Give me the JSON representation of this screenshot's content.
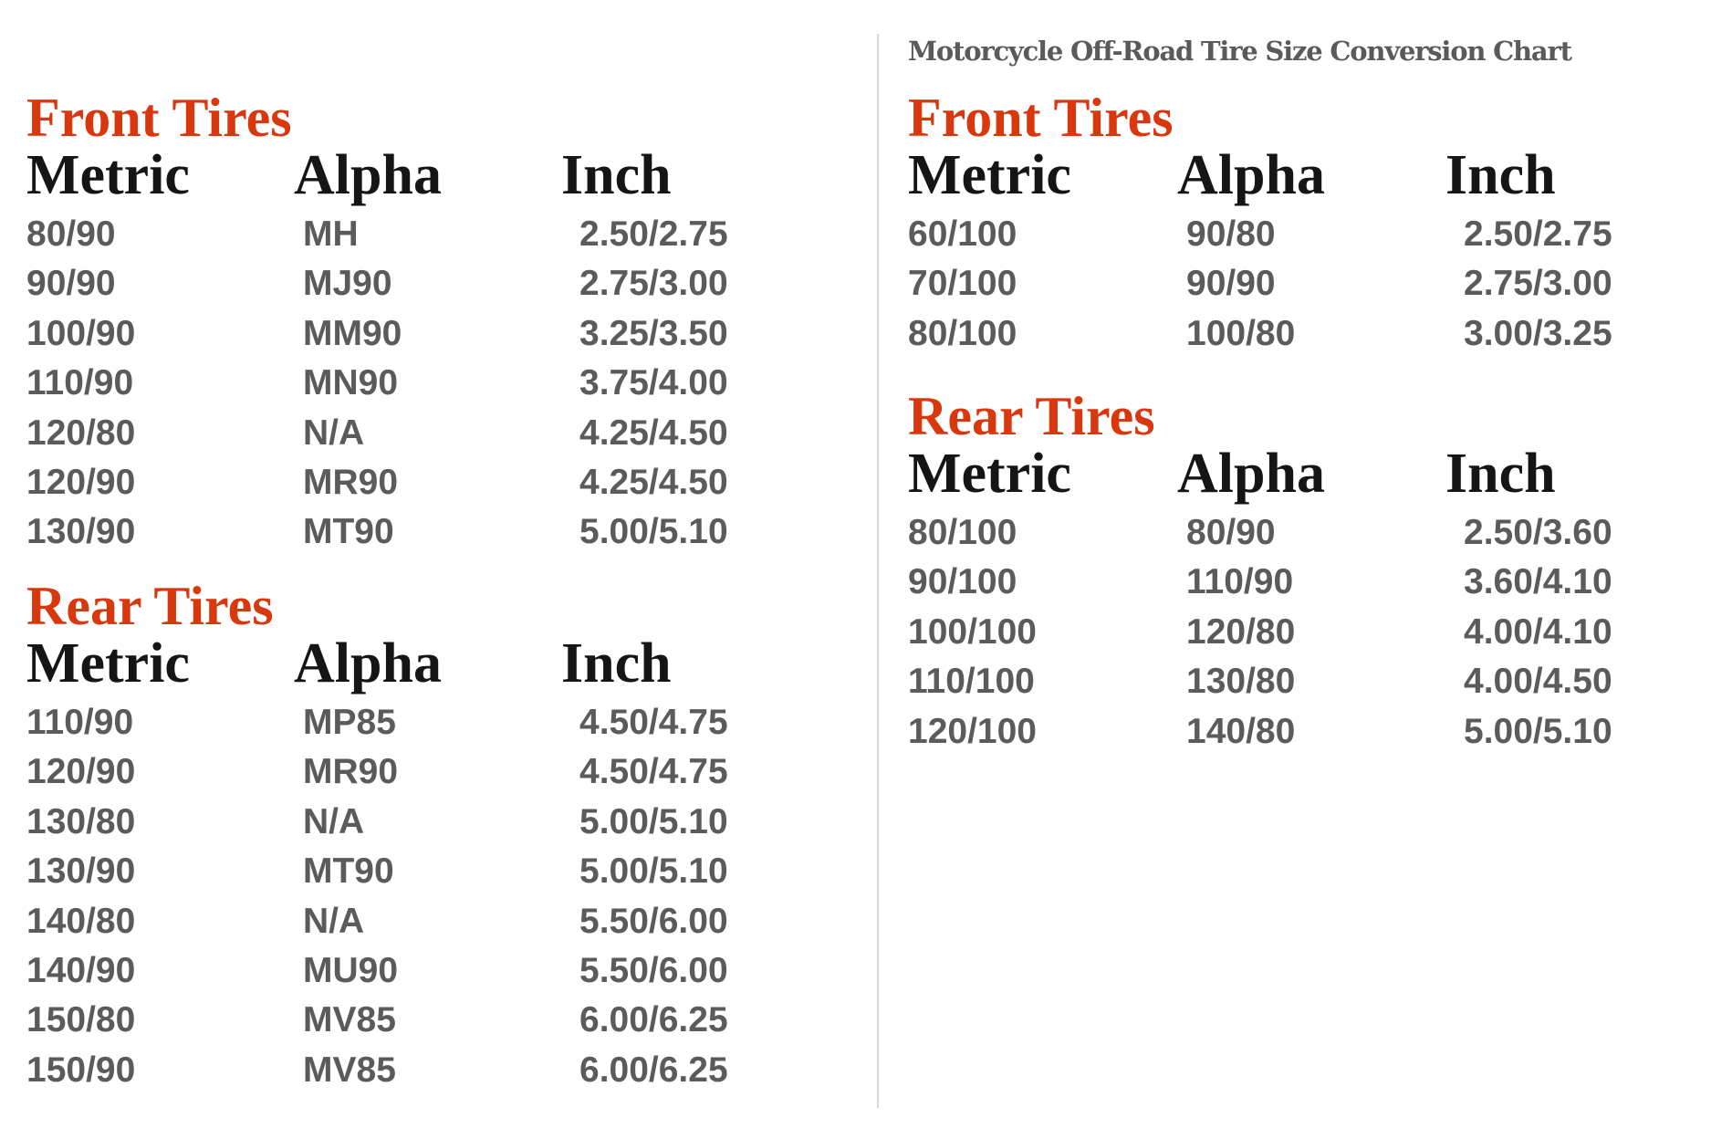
{
  "title": "Motorcycle Off-Road Tire Size Conversion Chart",
  "colors": {
    "heading": "#d9380e",
    "column_header": "#151515",
    "cell_text": "#5b5b5b",
    "divider": "#d8d8d8"
  },
  "left": {
    "front": {
      "heading": "Front Tires",
      "columns": [
        "Metric",
        "Alpha",
        "Inch"
      ],
      "rows": [
        [
          "80/90",
          "MH",
          "2.50/2.75"
        ],
        [
          "90/90",
          "MJ90",
          "2.75/3.00"
        ],
        [
          "100/90",
          "MM90",
          "3.25/3.50"
        ],
        [
          "110/90",
          "MN90",
          "3.75/4.00"
        ],
        [
          "120/80",
          "N/A",
          "4.25/4.50"
        ],
        [
          "120/90",
          "MR90",
          "4.25/4.50"
        ],
        [
          "130/90",
          "MT90",
          "5.00/5.10"
        ]
      ]
    },
    "rear": {
      "heading": "Rear Tires",
      "columns": [
        "Metric",
        "Alpha",
        "Inch"
      ],
      "rows": [
        [
          "110/90",
          "MP85",
          "4.50/4.75"
        ],
        [
          "120/90",
          "MR90",
          "4.50/4.75"
        ],
        [
          "130/80",
          "N/A",
          "5.00/5.10"
        ],
        [
          "130/90",
          "MT90",
          "5.00/5.10"
        ],
        [
          "140/80",
          "N/A",
          "5.50/6.00"
        ],
        [
          "140/90",
          "MU90",
          "5.50/6.00"
        ],
        [
          "150/80",
          "MV85",
          "6.00/6.25"
        ],
        [
          "150/90",
          "MV85",
          "6.00/6.25"
        ]
      ]
    }
  },
  "right": {
    "front": {
      "heading": "Front Tires",
      "columns": [
        "Metric",
        "Alpha",
        "Inch"
      ],
      "rows": [
        [
          "60/100",
          "90/80",
          "2.50/2.75"
        ],
        [
          "70/100",
          "90/90",
          "2.75/3.00"
        ],
        [
          "80/100",
          "100/80",
          "3.00/3.25"
        ]
      ]
    },
    "rear": {
      "heading": "Rear Tires",
      "columns": [
        "Metric",
        "Alpha",
        "Inch"
      ],
      "rows": [
        [
          "80/100",
          "80/90",
          "2.50/3.60"
        ],
        [
          "90/100",
          "110/90",
          "3.60/4.10"
        ],
        [
          "100/100",
          "120/80",
          "4.00/4.10"
        ],
        [
          "110/100",
          "130/80",
          "4.00/4.50"
        ],
        [
          "120/100",
          "140/80",
          "5.00/5.10"
        ]
      ]
    }
  }
}
